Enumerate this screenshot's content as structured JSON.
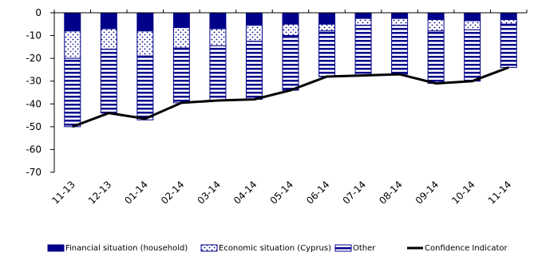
{
  "chart_data": {
    "type": "bar",
    "stacked": true,
    "categories": [
      "11-13",
      "12-13",
      "01-14",
      "02-14",
      "03-14",
      "04-14",
      "05-14",
      "06-14",
      "07-14",
      "08-14",
      "09-14",
      "10-14",
      "11-14"
    ],
    "series": [
      {
        "name": "Financial situation (household)",
        "kind": "bar",
        "pattern": "solid",
        "values": [
          -8,
          -7,
          -8,
          -6.5,
          -7,
          -5.5,
          -5,
          -5,
          -2.5,
          -2.5,
          -3,
          -3.5,
          -3
        ]
      },
      {
        "name": "Economic situation (Cyprus)",
        "kind": "bar",
        "pattern": "dots",
        "values": [
          -12,
          -9,
          -11,
          -9,
          -7.5,
          -7,
          -5,
          -3,
          -3,
          -3,
          -5,
          -4,
          -2
        ]
      },
      {
        "name": "Other",
        "kind": "bar",
        "pattern": "stripes",
        "values": [
          -30,
          -28,
          -28,
          -24,
          -24,
          -25.5,
          -24,
          -20,
          -22,
          -21.5,
          -23,
          -22.5,
          -19
        ]
      },
      {
        "name": "Confidence Indicator",
        "kind": "line",
        "values": [
          -50,
          -44,
          -46.5,
          -39.5,
          -38.5,
          -38,
          -34,
          -28,
          -27.5,
          -27,
          -31,
          -30,
          -24
        ]
      }
    ],
    "ylim": [
      -70,
      0
    ],
    "yticks": [
      0,
      -10,
      -20,
      -30,
      -40,
      -50,
      -60,
      -70
    ],
    "grid": false,
    "legend_position": "bottom",
    "colors": {
      "bar_fill": "#00008B",
      "line": "#000000",
      "axis": "#000000"
    }
  }
}
